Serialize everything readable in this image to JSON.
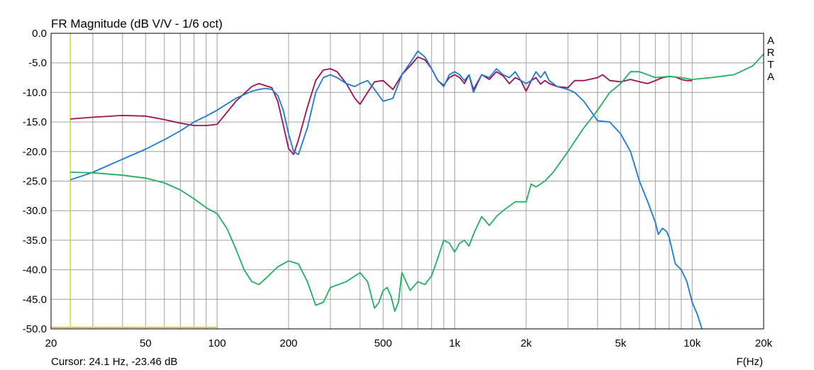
{
  "chart_data": {
    "type": "line",
    "title": "FR Magnitude (dB V/V - 1/6 oct)",
    "xlabel": "F(Hz)",
    "ylabel": "",
    "x_scale": "log",
    "xlim": [
      20,
      20000
    ],
    "ylim": [
      -50,
      0
    ],
    "grid": true,
    "x_tick_values": [
      20,
      50,
      100,
      200,
      500,
      1000,
      2000,
      5000,
      10000,
      20000
    ],
    "x_tick_labels": [
      "20",
      "50",
      "100",
      "200",
      "500",
      "1k",
      "2k",
      "5k",
      "10k",
      "20k"
    ],
    "y_tick_values": [
      0,
      -5,
      -10,
      -15,
      -20,
      -25,
      -30,
      -35,
      -40,
      -45,
      -50
    ],
    "y_tick_labels": [
      "0.0",
      "-5.0",
      "-10.0",
      "-15.0",
      "-20.0",
      "-25.0",
      "-30.0",
      "-35.0",
      "-40.0",
      "-45.0",
      "-50.0"
    ],
    "brand": [
      "A",
      "R",
      "T",
      "A"
    ],
    "cursor_text": "Cursor: 24.1 Hz, -23.46 dB",
    "cursor": {
      "x": 24.1,
      "y": -23.46,
      "color": "#d4d400"
    },
    "colors": {
      "grid": "#a0a0a0",
      "frame": "#000000"
    },
    "series": [
      {
        "color": "#a01050",
        "x": [
          24.1,
          30,
          40,
          50,
          60,
          70,
          80,
          90,
          100,
          120,
          140,
          150,
          170,
          180,
          190,
          200,
          210,
          220,
          240,
          260,
          280,
          300,
          320,
          350,
          380,
          400,
          430,
          460,
          500,
          550,
          600,
          650,
          700,
          750,
          800,
          850,
          900,
          950,
          1000,
          1050,
          1100,
          1150,
          1200,
          1300,
          1400,
          1500,
          1600,
          1700,
          1800,
          1900,
          2000,
          2100,
          2200,
          2300,
          2400,
          2500,
          2700,
          3000,
          3200,
          3500,
          4000,
          4200,
          4500,
          5000,
          5500,
          6000,
          6500,
          7000,
          7500,
          8000,
          8500,
          9000,
          9500,
          10000
        ],
        "y": [
          -14.5,
          -14.2,
          -13.9,
          -14.0,
          -14.6,
          -15.2,
          -15.6,
          -15.6,
          -15.4,
          -11.5,
          -9.0,
          -8.5,
          -9.2,
          -11.5,
          -15.5,
          -19.5,
          -20.5,
          -18.0,
          -12.5,
          -8.0,
          -6.2,
          -6.0,
          -6.5,
          -8.5,
          -11.0,
          -12.0,
          -10.0,
          -8.2,
          -8.0,
          -9.5,
          -7.0,
          -5.5,
          -4.0,
          -4.5,
          -6.0,
          -8.0,
          -8.8,
          -7.5,
          -7.0,
          -7.5,
          -8.5,
          -7.0,
          -9.5,
          -7.0,
          -7.8,
          -6.5,
          -7.2,
          -8.5,
          -7.5,
          -8.0,
          -9.8,
          -8.0,
          -7.5,
          -8.6,
          -8.0,
          -8.5,
          -9.0,
          -9.2,
          -8.0,
          -8.0,
          -7.5,
          -7.0,
          -8.0,
          -8.2,
          -7.8,
          -8.2,
          -8.5,
          -8.0,
          -7.5,
          -7.3,
          -7.4,
          -7.8,
          -8.0,
          -8.0
        ]
      },
      {
        "color": "#1a7ad6",
        "x": [
          24.1,
          30,
          40,
          50,
          60,
          70,
          80,
          90,
          100,
          120,
          140,
          150,
          160,
          170,
          180,
          190,
          200,
          210,
          220,
          240,
          260,
          280,
          300,
          320,
          350,
          380,
          400,
          430,
          460,
          480,
          500,
          550,
          600,
          650,
          700,
          750,
          800,
          850,
          900,
          950,
          1000,
          1050,
          1100,
          1150,
          1200,
          1300,
          1400,
          1500,
          1600,
          1700,
          1800,
          1900,
          2000,
          2100,
          2200,
          2300,
          2400,
          2500,
          2700,
          3000,
          3200,
          3500,
          4000,
          4500,
          5000,
          5500,
          6000,
          6500,
          7000,
          7200,
          7500,
          7800,
          8000,
          8500,
          9000,
          9500,
          10000,
          10500,
          11000
        ],
        "y": [
          -24.8,
          -23.5,
          -21.3,
          -19.6,
          -18.0,
          -16.5,
          -15.0,
          -14.0,
          -13.0,
          -11.0,
          -9.8,
          -9.5,
          -9.3,
          -9.5,
          -10.5,
          -13.0,
          -17.0,
          -20.0,
          -20.5,
          -16.0,
          -10.0,
          -7.5,
          -7.0,
          -7.5,
          -8.5,
          -9.0,
          -8.5,
          -8.0,
          -9.5,
          -10.5,
          -11.5,
          -11.0,
          -7.0,
          -5.0,
          -3.0,
          -4.0,
          -6.0,
          -8.0,
          -9.0,
          -7.0,
          -6.5,
          -7.0,
          -8.0,
          -7.0,
          -10.0,
          -7.0,
          -7.5,
          -6.0,
          -7.0,
          -7.5,
          -6.5,
          -8.0,
          -8.5,
          -8.0,
          -6.5,
          -7.5,
          -6.5,
          -8.0,
          -9.0,
          -9.5,
          -10.0,
          -11.5,
          -14.8,
          -15.0,
          -17.0,
          -20.0,
          -25.0,
          -28.5,
          -32.0,
          -34.0,
          -33.0,
          -33.5,
          -34.5,
          -39.0,
          -40.0,
          -42.0,
          -45.5,
          -47.5,
          -50.0
        ]
      },
      {
        "color": "#20b060",
        "x": [
          24.1,
          30,
          40,
          50,
          60,
          70,
          80,
          90,
          100,
          110,
          120,
          130,
          140,
          150,
          160,
          180,
          200,
          220,
          240,
          260,
          280,
          300,
          350,
          400,
          430,
          460,
          480,
          500,
          520,
          540,
          560,
          580,
          600,
          650,
          700,
          750,
          800,
          850,
          900,
          950,
          1000,
          1050,
          1100,
          1150,
          1200,
          1300,
          1400,
          1500,
          1600,
          1800,
          2000,
          2100,
          2200,
          2400,
          2600,
          3000,
          3500,
          4000,
          4500,
          5000,
          5500,
          6000,
          7000,
          8000,
          9000,
          10000,
          12000,
          15000,
          18000,
          20000
        ],
        "y": [
          -23.5,
          -23.6,
          -24.0,
          -24.5,
          -25.3,
          -26.5,
          -28.0,
          -29.5,
          -30.5,
          -33.0,
          -36.5,
          -40.0,
          -42.0,
          -42.5,
          -41.5,
          -39.5,
          -38.5,
          -39.0,
          -42.0,
          -46.0,
          -45.5,
          -43.0,
          -42.0,
          -40.5,
          -42.0,
          -46.5,
          -45.5,
          -43.5,
          -43.0,
          -44.5,
          -47.0,
          -45.5,
          -40.5,
          -43.5,
          -42.0,
          -42.5,
          -41.0,
          -38.0,
          -35.0,
          -35.5,
          -37.0,
          -35.5,
          -35.0,
          -36.0,
          -34.0,
          -31.0,
          -32.5,
          -31.0,
          -30.0,
          -28.5,
          -28.5,
          -25.5,
          -26.0,
          -25.0,
          -23.5,
          -20.0,
          -16.0,
          -13.0,
          -10.0,
          -8.5,
          -6.5,
          -6.5,
          -7.5,
          -7.3,
          -7.5,
          -7.8,
          -7.5,
          -7.0,
          -5.5,
          -3.5
        ]
      }
    ]
  }
}
